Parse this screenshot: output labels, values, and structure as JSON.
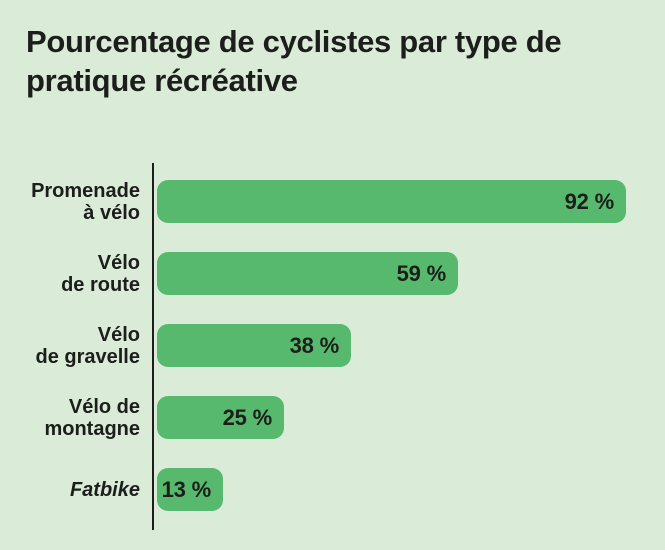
{
  "page": {
    "background": "#daecd8"
  },
  "title": "Pourcentage de cyclistes par type de pratique récréative",
  "colors": {
    "bar": "#57b96d",
    "text": "#1c1e1b",
    "axis": "#1c1e1b",
    "background": "#daecd8"
  },
  "chart_data": {
    "type": "bar",
    "orientation": "horizontal",
    "title": "Pourcentage de cyclistes par type de pratique récréative",
    "xlabel": "",
    "ylabel": "",
    "unit": "%",
    "xlim": [
      0,
      100
    ],
    "grid": false,
    "legend": false,
    "value_label_position": "inside-right",
    "categories": [
      "Promenade à vélo",
      "Vélo de route",
      "Vélo de gravelle",
      "Vélo de montagne",
      "Fatbike"
    ],
    "values": [
      92,
      59,
      38,
      25,
      13
    ],
    "bars": [
      {
        "category": "Promenade à vélo",
        "label": "Promenade\nà vélo",
        "value": 92,
        "value_label": "92 %",
        "italic": false
      },
      {
        "category": "Vélo de route",
        "label": "Vélo\nde route",
        "value": 59,
        "value_label": "59 %",
        "italic": false
      },
      {
        "category": "Vélo de gravelle",
        "label": "Vélo\nde gravelle",
        "value": 38,
        "value_label": "38 %",
        "italic": false
      },
      {
        "category": "Vélo de montagne",
        "label": "Vélo de\nmontagne",
        "value": 25,
        "value_label": "25 %",
        "italic": false
      },
      {
        "category": "Fatbike",
        "label": "Fatbike",
        "value": 13,
        "value_label": "13 %",
        "italic": true
      }
    ]
  }
}
